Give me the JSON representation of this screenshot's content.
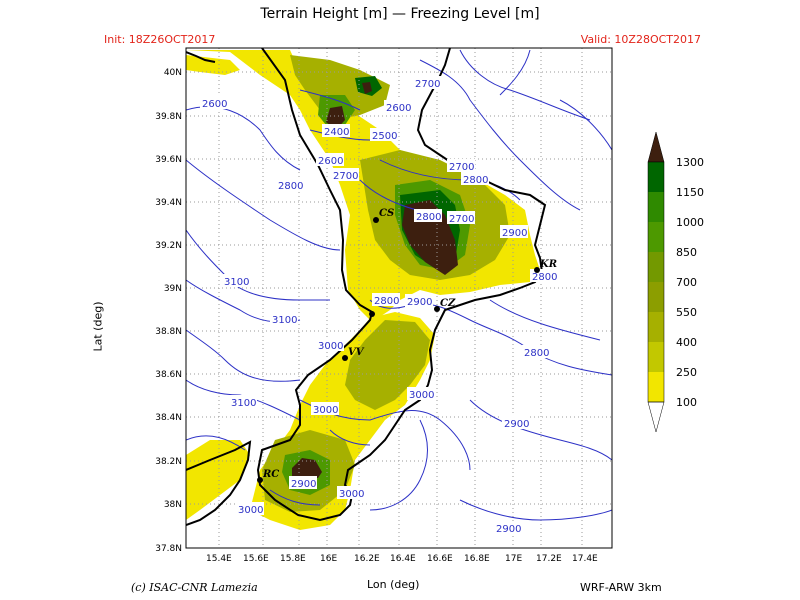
{
  "header": {
    "title": "Terrain Height [m] — Freezing Level [m]",
    "init": "Init: 18Z26OCT2017",
    "valid": "Valid: 10Z28OCT2017"
  },
  "footer": {
    "credit": "(c) ISAC-CNR Lamezia",
    "model": "WRF-ARW 3km"
  },
  "axes": {
    "xlabel": "Lon (deg)",
    "ylabel": "Lat (deg)",
    "x_ticks": [
      "15.4E",
      "15.6E",
      "15.8E",
      "16E",
      "16.2E",
      "16.4E",
      "16.6E",
      "16.8E",
      "17E",
      "17.2E",
      "17.4E"
    ],
    "y_ticks": [
      "40N",
      "39.8N",
      "39.6N",
      "39.4N",
      "39.2N",
      "39N",
      "38.8N",
      "38.6N",
      "38.4N",
      "38.2N",
      "38N",
      "37.8N"
    ]
  },
  "colorbar": {
    "labels": [
      "1300",
      "1150",
      "1000",
      "850",
      "700",
      "550",
      "400",
      "250",
      "100"
    ],
    "colors": [
      "#006600",
      "#2f8a00",
      "#4d9900",
      "#739900",
      "#8c9e00",
      "#a6b000",
      "#c2c800",
      "#dcd800",
      "#f2e600"
    ],
    "top_color": "#3d1f0f"
  },
  "cities": [
    {
      "code": "CS"
    },
    {
      "code": "KR"
    },
    {
      "code": "CZ"
    },
    {
      "code": "VV"
    },
    {
      "code": "RC"
    }
  ],
  "contour_labels": [
    "2700",
    "2600",
    "2600",
    "2400",
    "2500",
    "2600",
    "2700",
    "2700",
    "2800",
    "2800",
    "2700",
    "2900",
    "2800",
    "2800",
    "3100",
    "2800",
    "2900",
    "3100",
    "2800",
    "3000",
    "3000",
    "3000",
    "3100",
    "2900",
    "2900",
    "3000",
    "3000",
    "2900"
  ],
  "colors": {
    "contour": "#2d31c6",
    "coast": "#000000",
    "grid": "#9a9a9a",
    "peak": "#3d1f0f",
    "header_red": "#e2241a"
  }
}
